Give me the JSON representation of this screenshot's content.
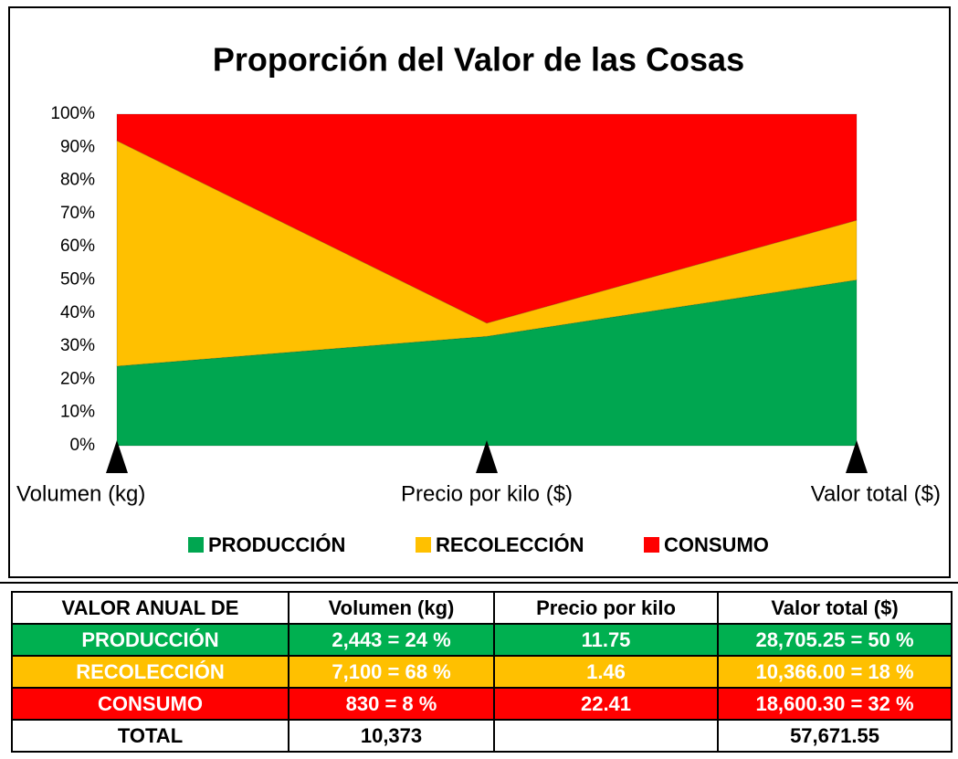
{
  "chart_data": {
    "type": "area",
    "stacked": true,
    "title": "Proporción del Valor de las Cosas",
    "categories": [
      "Volumen (kg)",
      "Precio por kilo ($)",
      "Valor total ($)"
    ],
    "series": [
      {
        "name": "PRODUCCIÓN",
        "color": "#00a650",
        "values": [
          24,
          33,
          50
        ]
      },
      {
        "name": "RECOLECCIÓN",
        "color": "#ffc000",
        "values": [
          68,
          4,
          18
        ]
      },
      {
        "name": "CONSUMO",
        "color": "#ff0000",
        "values": [
          8,
          63,
          32
        ]
      }
    ],
    "ylim": [
      0,
      100
    ],
    "yticks": [
      {
        "value": 0,
        "label": "0%"
      },
      {
        "value": 10,
        "label": "10%"
      },
      {
        "value": 20,
        "label": "20%"
      },
      {
        "value": 30,
        "label": "30%"
      },
      {
        "value": 40,
        "label": "40%"
      },
      {
        "value": 50,
        "label": "50%"
      },
      {
        "value": 60,
        "label": "60%"
      },
      {
        "value": 70,
        "label": "70%"
      },
      {
        "value": 80,
        "label": "80%"
      },
      {
        "value": 90,
        "label": "90%"
      },
      {
        "value": 100,
        "label": "100%"
      }
    ],
    "grid": false,
    "legend": "bottom"
  },
  "table": {
    "header": [
      "VALOR ANUAL DE",
      "Volumen (kg)",
      "Precio por kilo",
      "Valor total ($)"
    ],
    "rows": [
      [
        "PRODUCCIÓN",
        "2,443 = 24 %",
        "11.75",
        "28,705.25 = 50 %"
      ],
      [
        "RECOLECCIÓN",
        "7,100 = 68 %",
        "1.46",
        "10,366.00 = 18 %"
      ],
      [
        "CONSUMO",
        "830 = 8 %",
        "22.41",
        "18,600.30 = 32 %"
      ]
    ],
    "total": [
      "TOTAL",
      "10,373",
      "57,671.55"
    ]
  }
}
